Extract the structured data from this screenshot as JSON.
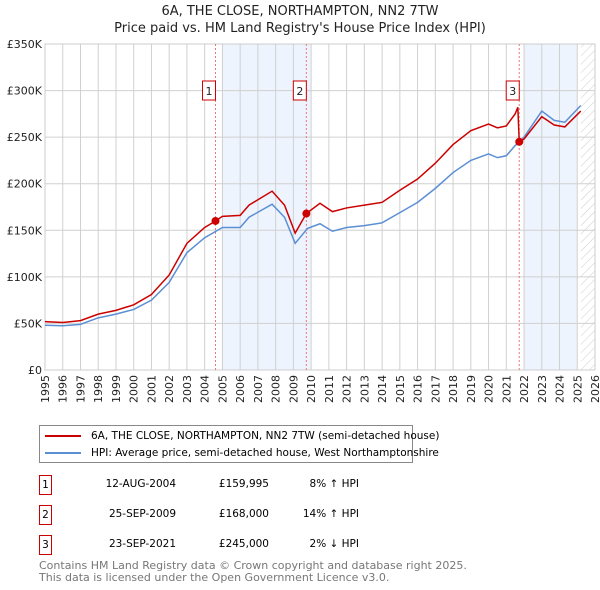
{
  "title": "6A, THE CLOSE, NORTHAMPTON, NN2 7TW",
  "subtitle": "Price paid vs. HM Land Registry's House Price Index (HPI)",
  "chart_data": {
    "type": "line",
    "xlim": [
      1995,
      2026
    ],
    "ylim": [
      0,
      350000
    ],
    "x_ticks": [
      "1995",
      "1996",
      "1997",
      "1998",
      "1999",
      "2000",
      "2001",
      "2002",
      "2003",
      "2004",
      "2005",
      "2006",
      "2007",
      "2008",
      "2009",
      "2010",
      "2011",
      "2012",
      "2013",
      "2014",
      "2015",
      "2016",
      "2017",
      "2018",
      "2019",
      "2020",
      "2021",
      "2022",
      "2023",
      "2024",
      "2025",
      "2026"
    ],
    "y_ticks": [
      {
        "v": 0,
        "label": "£0"
      },
      {
        "v": 50000,
        "label": "£50K"
      },
      {
        "v": 100000,
        "label": "£100K"
      },
      {
        "v": 150000,
        "label": "£150K"
      },
      {
        "v": 200000,
        "label": "£200K"
      },
      {
        "v": 250000,
        "label": "£250K"
      },
      {
        "v": 300000,
        "label": "£300K"
      },
      {
        "v": 350000,
        "label": "£350K"
      }
    ],
    "shaded_ranges": [
      [
        2005,
        2010
      ],
      [
        2022,
        2025
      ]
    ],
    "hatched_from": 2025.2,
    "colors": {
      "property": "#cc0000",
      "hpi": "#5b8fd4"
    },
    "series": [
      {
        "name": "6A, THE CLOSE, NORTHAMPTON, NN2 7TW (semi-detached house)",
        "color": "#cc0000",
        "points": [
          [
            1995,
            52000
          ],
          [
            1996,
            51000
          ],
          [
            1997,
            53000
          ],
          [
            1998,
            60000
          ],
          [
            1999,
            64000
          ],
          [
            2000,
            70000
          ],
          [
            2001,
            81000
          ],
          [
            2002,
            102000
          ],
          [
            2003,
            136000
          ],
          [
            2004,
            153000
          ],
          [
            2004.61,
            159995
          ],
          [
            2005,
            165000
          ],
          [
            2006,
            166000
          ],
          [
            2006.5,
            177000
          ],
          [
            2007.8,
            192000
          ],
          [
            2008.5,
            177000
          ],
          [
            2009.1,
            147000
          ],
          [
            2009.73,
            168000
          ],
          [
            2010.5,
            179000
          ],
          [
            2011.2,
            170000
          ],
          [
            2012,
            174000
          ],
          [
            2013,
            177000
          ],
          [
            2014,
            180000
          ],
          [
            2015,
            193000
          ],
          [
            2016,
            205000
          ],
          [
            2017,
            222000
          ],
          [
            2018,
            242000
          ],
          [
            2019,
            257000
          ],
          [
            2020,
            264000
          ],
          [
            2020.5,
            260000
          ],
          [
            2021,
            262000
          ],
          [
            2021.5,
            275000
          ],
          [
            2021.65,
            282000
          ],
          [
            2021.73,
            245000
          ],
          [
            2022,
            248000
          ],
          [
            2023,
            272000
          ],
          [
            2023.7,
            263000
          ],
          [
            2024.3,
            261000
          ],
          [
            2025.2,
            278000
          ]
        ]
      },
      {
        "name": "HPI: Average price, semi-detached house, West Northamptonshire",
        "color": "#5b8fd4",
        "points": [
          [
            1995,
            48000
          ],
          [
            1996,
            47500
          ],
          [
            1997,
            49000
          ],
          [
            1998,
            56000
          ],
          [
            1999,
            60000
          ],
          [
            2000,
            65000
          ],
          [
            2001,
            75000
          ],
          [
            2002,
            94000
          ],
          [
            2003,
            126000
          ],
          [
            2004,
            142000
          ],
          [
            2005,
            153000
          ],
          [
            2006,
            153000
          ],
          [
            2006.5,
            164000
          ],
          [
            2007.8,
            178000
          ],
          [
            2008.5,
            164000
          ],
          [
            2009.1,
            136000
          ],
          [
            2009.8,
            152000
          ],
          [
            2010.5,
            157000
          ],
          [
            2011.2,
            149000
          ],
          [
            2012,
            153000
          ],
          [
            2013,
            155000
          ],
          [
            2014,
            158000
          ],
          [
            2015,
            169000
          ],
          [
            2016,
            180000
          ],
          [
            2017,
            195000
          ],
          [
            2018,
            212000
          ],
          [
            2019,
            225000
          ],
          [
            2020,
            232000
          ],
          [
            2020.5,
            228000
          ],
          [
            2021,
            230000
          ],
          [
            2021.5,
            241000
          ],
          [
            2022,
            250000
          ],
          [
            2023,
            278000
          ],
          [
            2023.7,
            268000
          ],
          [
            2024.3,
            266000
          ],
          [
            2025.2,
            284000
          ]
        ]
      }
    ],
    "annotations": [
      {
        "label": "1",
        "x": 2004.61,
        "y": 159995
      },
      {
        "label": "2",
        "x": 2009.73,
        "y": 168000
      },
      {
        "label": "3",
        "x": 2021.73,
        "y": 245000
      }
    ]
  },
  "legend": {
    "property": "6A, THE CLOSE, NORTHAMPTON, NN2 7TW (semi-detached house)",
    "hpi": "HPI: Average price, semi-detached house, West Northamptonshire"
  },
  "sales": [
    {
      "num": "1",
      "date": "12-AUG-2004",
      "price": "£159,995",
      "hpi": "8% ↑ HPI"
    },
    {
      "num": "2",
      "date": "25-SEP-2009",
      "price": "£168,000",
      "hpi": "14% ↑ HPI"
    },
    {
      "num": "3",
      "date": "23-SEP-2021",
      "price": "£245,000",
      "hpi": "2% ↓ HPI"
    }
  ],
  "footer": {
    "line1": "Contains HM Land Registry data © Crown copyright and database right 2025.",
    "line2": "This data is licensed under the Open Government Licence v3.0."
  }
}
